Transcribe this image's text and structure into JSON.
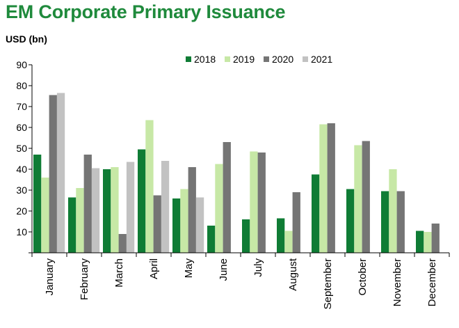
{
  "chart_data": {
    "type": "bar",
    "title": "EM Corporate Primary Issuance",
    "ylabel": "USD (bn)",
    "ylim": [
      0,
      90
    ],
    "yticks": [
      "10",
      "20",
      "30",
      "40",
      "50",
      "60",
      "70",
      "80",
      "90"
    ],
    "legend_position": "top-center",
    "grid": false,
    "categories": [
      "January",
      "February",
      "March",
      "April",
      "May",
      "June",
      "July",
      "August",
      "September",
      "October",
      "November",
      "December"
    ],
    "series": [
      {
        "name": "2018",
        "color": "#0f7c35",
        "values": [
          47,
          26.5,
          40,
          49.5,
          26,
          13,
          16,
          16.5,
          37.5,
          30.5,
          29.5,
          10.5
        ]
      },
      {
        "name": "2019",
        "color": "#c7e8a6",
        "values": [
          36,
          31,
          41,
          63.5,
          30.5,
          42.5,
          48.5,
          10.5,
          61.5,
          51.5,
          40,
          10
        ]
      },
      {
        "name": "2020",
        "color": "#757575",
        "values": [
          75.5,
          47,
          9,
          27.5,
          41,
          53,
          48,
          29,
          62,
          53.5,
          29.5,
          14
        ]
      },
      {
        "name": "2021",
        "color": "#c2c2c2",
        "values": [
          76.5,
          40.5,
          43.5,
          44,
          26.5,
          null,
          null,
          null,
          null,
          null,
          null,
          null
        ]
      }
    ]
  }
}
